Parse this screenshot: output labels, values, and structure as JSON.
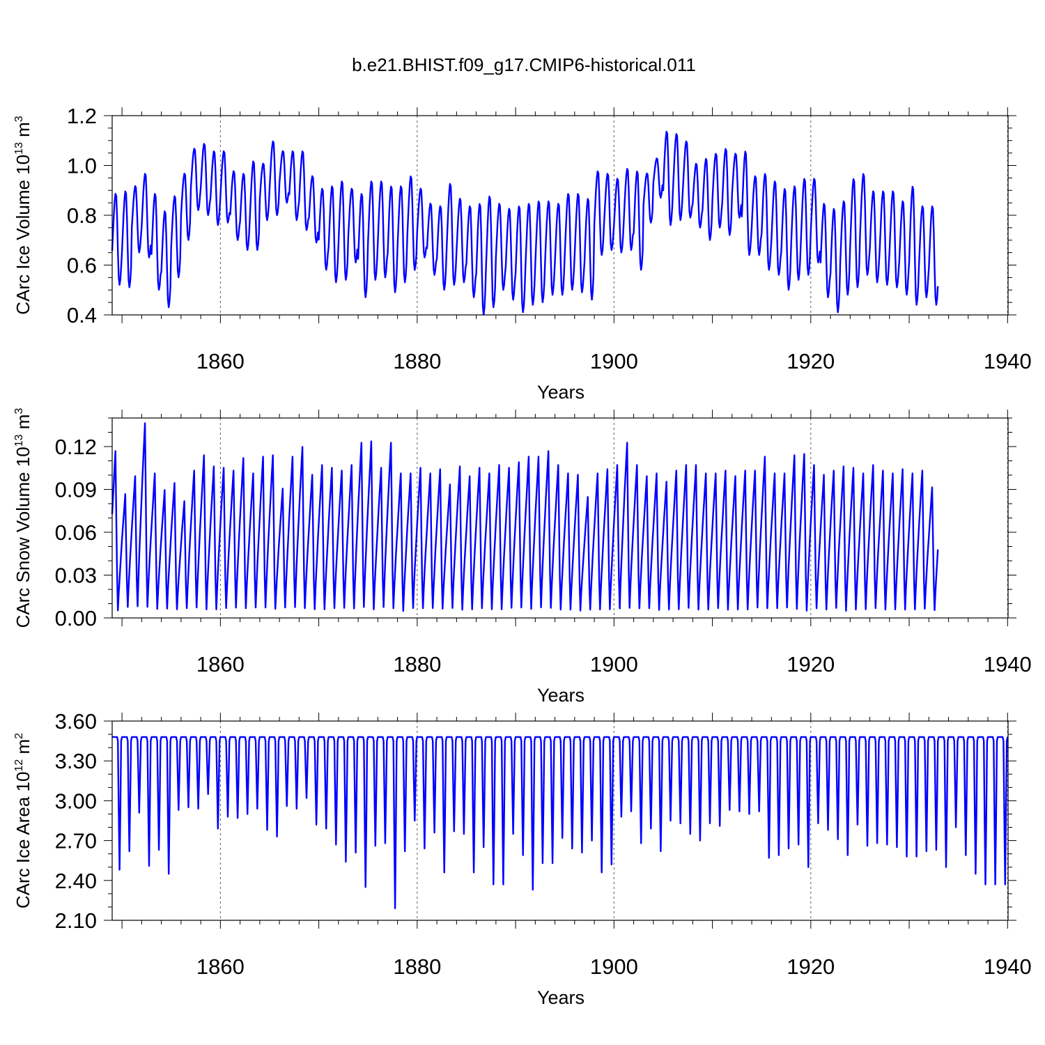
{
  "figure": {
    "title": "b.e21.BHIST.f09_g17.CMIP6-historical.011"
  },
  "colors": {
    "line": "#0000ff",
    "axis": "#000000",
    "grid": "#555555"
  },
  "chart_data": [
    {
      "type": "line",
      "name": "ice-volume",
      "title": "",
      "xlabel": "Years",
      "ylabel_main": "CArc Ice Volume 10",
      "ylabel_exp": "13",
      "ylabel_unit": " m",
      "ylabel_unit_exp": "3",
      "xlim": [
        1849,
        1940.05
      ],
      "ylim": [
        0.4,
        1.2
      ],
      "xticks": [
        1860,
        1880,
        1900,
        1920,
        1940
      ],
      "xtick_labels": [
        "1860",
        "1880",
        "1900",
        "1920",
        "1940"
      ],
      "yticks": [
        0.4,
        0.6,
        0.8,
        1.0,
        1.2
      ],
      "ytick_labels": [
        "0.4",
        "0.6",
        "0.8",
        "1.0",
        "1.2"
      ],
      "yminor_step": 0.05,
      "series": [
        {
          "name": "CArc Ice Volume",
          "start_year": 1849,
          "samples_per_year": 12,
          "generator": "annual_cycle",
          "min_month": 8.8,
          "max_month": 4.5,
          "annual_max": [
            0.89,
            0.9,
            0.92,
            0.97,
            0.89,
            0.82,
            0.88,
            0.97,
            1.07,
            1.09,
            1.06,
            1.06,
            0.98,
            0.97,
            1.02,
            1.01,
            1.1,
            1.06,
            1.06,
            1.06,
            0.96,
            0.91,
            0.92,
            0.94,
            0.91,
            0.89,
            0.94,
            0.94,
            0.92,
            0.92,
            0.96,
            0.91,
            0.85,
            0.84,
            0.93,
            0.87,
            0.84,
            0.85,
            0.88,
            0.85,
            0.83,
            0.84,
            0.85,
            0.86,
            0.86,
            0.85,
            0.89,
            0.89,
            0.87,
            0.98,
            0.97,
            0.95,
            0.99,
            0.98,
            0.97,
            1.03,
            1.14,
            1.13,
            1.1,
            1.01,
            1.03,
            1.05,
            1.07,
            1.05,
            1.06,
            0.96,
            0.97,
            0.94,
            0.91,
            0.92,
            0.95,
            0.95,
            0.85,
            0.83,
            0.86,
            0.95,
            0.97,
            0.9,
            0.9,
            0.9,
            0.86,
            0.92,
            0.84,
            0.84
          ],
          "annual_min": [
            0.52,
            0.51,
            0.65,
            0.63,
            0.5,
            0.43,
            0.55,
            0.7,
            0.82,
            0.8,
            0.76,
            0.77,
            0.7,
            0.66,
            0.66,
            0.78,
            0.8,
            0.85,
            0.78,
            0.74,
            0.69,
            0.58,
            0.53,
            0.54,
            0.61,
            0.47,
            0.54,
            0.55,
            0.49,
            0.53,
            0.58,
            0.63,
            0.56,
            0.5,
            0.52,
            0.53,
            0.47,
            0.4,
            0.43,
            0.5,
            0.46,
            0.41,
            0.44,
            0.45,
            0.48,
            0.48,
            0.5,
            0.49,
            0.46,
            0.64,
            0.66,
            0.65,
            0.66,
            0.58,
            0.77,
            0.87,
            0.76,
            0.78,
            0.79,
            0.75,
            0.7,
            0.75,
            0.72,
            0.79,
            0.64,
            0.64,
            0.58,
            0.56,
            0.5,
            0.54,
            0.56,
            0.61,
            0.47,
            0.41,
            0.48,
            0.51,
            0.56,
            0.53,
            0.52,
            0.51,
            0.48,
            0.44,
            0.47,
            0.44
          ]
        }
      ]
    },
    {
      "type": "line",
      "name": "snow-volume",
      "title": "",
      "xlabel": "Years",
      "ylabel_main": "CArc Snow Volume 10",
      "ylabel_exp": "13",
      "ylabel_unit": " m",
      "ylabel_unit_exp": "3",
      "xlim": [
        1849,
        1940.05
      ],
      "ylim": [
        0.0,
        0.14
      ],
      "xticks": [
        1860,
        1880,
        1900,
        1920,
        1940
      ],
      "xtick_labels": [
        "1860",
        "1880",
        "1900",
        "1920",
        "1940"
      ],
      "yticks": [
        0.0,
        0.03,
        0.06,
        0.09,
        0.12
      ],
      "ytick_labels": [
        "0.00",
        "0.03",
        "0.06",
        "0.09",
        "0.12"
      ],
      "yminor_step": 0.01,
      "series": [
        {
          "name": "CArc Snow Volume",
          "start_year": 1849,
          "samples_per_year": 12,
          "generator": "sawtooth",
          "min_month": 6.8,
          "max_month": 4.3,
          "annual_max": [
            0.12,
            0.089,
            0.102,
            0.14,
            0.104,
            0.092,
            0.097,
            0.084,
            0.106,
            0.117,
            0.109,
            0.108,
            0.106,
            0.115,
            0.104,
            0.116,
            0.117,
            0.093,
            0.116,
            0.123,
            0.103,
            0.11,
            0.108,
            0.106,
            0.11,
            0.126,
            0.127,
            0.108,
            0.126,
            0.104,
            0.104,
            0.108,
            0.104,
            0.107,
            0.096,
            0.109,
            0.102,
            0.108,
            0.104,
            0.11,
            0.108,
            0.112,
            0.116,
            0.116,
            0.12,
            0.11,
            0.104,
            0.103,
            0.087,
            0.104,
            0.107,
            0.11,
            0.126,
            0.11,
            0.102,
            0.104,
            0.098,
            0.106,
            0.11,
            0.11,
            0.104,
            0.104,
            0.106,
            0.102,
            0.106,
            0.106,
            0.116,
            0.104,
            0.104,
            0.117,
            0.118,
            0.11,
            0.103,
            0.106,
            0.109,
            0.108,
            0.104,
            0.11,
            0.106,
            0.104,
            0.107,
            0.104,
            0.106,
            0.094
          ],
          "annual_min": [
            0.002,
            0.004,
            0.003,
            0.004,
            0.003,
            0.003,
            0.003,
            0.003,
            0.003,
            0.002,
            0.002,
            0.003,
            0.003,
            0.003,
            0.003,
            0.003,
            0.003,
            0.003,
            0.003,
            0.003,
            0.002,
            0.002,
            0.003,
            0.003,
            0.002,
            0.003,
            0.002,
            0.003,
            0.003,
            0.001,
            0.003,
            0.003,
            0.003,
            0.003,
            0.003,
            0.002,
            0.002,
            0.003,
            0.002,
            0.002,
            0.003,
            0.003,
            0.002,
            0.003,
            0.003,
            0.002,
            0.002,
            0.002,
            0.002,
            0.002,
            0.002,
            0.002,
            0.003,
            0.003,
            0.003,
            0.002,
            0.002,
            0.002,
            0.003,
            0.002,
            0.002,
            0.003,
            0.002,
            0.002,
            0.002,
            0.003,
            0.003,
            0.003,
            0.003,
            0.002,
            0.001,
            0.003,
            0.002,
            0.003,
            0.001,
            0.002,
            0.002,
            0.003,
            0.002,
            0.002,
            0.002,
            0.002,
            0.003,
            0.002
          ]
        }
      ]
    },
    {
      "type": "line",
      "name": "ice-area",
      "title": "",
      "xlabel": "Years",
      "ylabel_main": "CArc Ice Area 10",
      "ylabel_exp": "12",
      "ylabel_unit": " m",
      "ylabel_unit_exp": "2",
      "xlim": [
        1849,
        1940.05
      ],
      "ylim": [
        2.1,
        3.6
      ],
      "xticks": [
        1860,
        1880,
        1900,
        1920,
        1940
      ],
      "xtick_labels": [
        "1860",
        "1880",
        "1900",
        "1920",
        "1940"
      ],
      "yticks": [
        2.1,
        2.4,
        2.7,
        3.0,
        3.3,
        3.6
      ],
      "ytick_labels": [
        "2.10",
        "2.40",
        "2.70",
        "3.00",
        "3.30",
        "3.60"
      ],
      "yminor_step": 0.1,
      "series": [
        {
          "name": "CArc Ice Area",
          "start_year": 1849,
          "samples_per_year": 12,
          "generator": "area_dip",
          "plateau": 3.48,
          "dip_month": 8.8,
          "annual_min": [
            2.48,
            2.62,
            2.91,
            2.51,
            2.63,
            2.45,
            2.93,
            2.95,
            2.94,
            3.05,
            2.79,
            2.88,
            2.87,
            2.9,
            2.94,
            2.78,
            2.73,
            2.96,
            2.94,
            3.02,
            2.82,
            2.79,
            2.67,
            2.54,
            2.61,
            2.35,
            2.66,
            2.68,
            2.19,
            2.62,
            2.85,
            2.64,
            2.76,
            2.46,
            2.77,
            2.75,
            2.46,
            2.65,
            2.37,
            2.37,
            2.75,
            2.59,
            2.33,
            2.53,
            2.53,
            2.72,
            2.64,
            2.61,
            2.7,
            2.46,
            2.52,
            2.88,
            2.92,
            2.68,
            2.79,
            2.62,
            2.85,
            2.83,
            2.75,
            2.7,
            2.83,
            2.81,
            2.93,
            2.92,
            2.9,
            2.92,
            2.57,
            2.59,
            2.64,
            2.67,
            2.5,
            2.83,
            2.78,
            2.71,
            2.59,
            2.82,
            2.66,
            2.68,
            2.67,
            2.65,
            2.58,
            2.58,
            2.62,
            2.63,
            2.5,
            2.8,
            2.59,
            2.45,
            2.37
          ]
        }
      ]
    }
  ]
}
